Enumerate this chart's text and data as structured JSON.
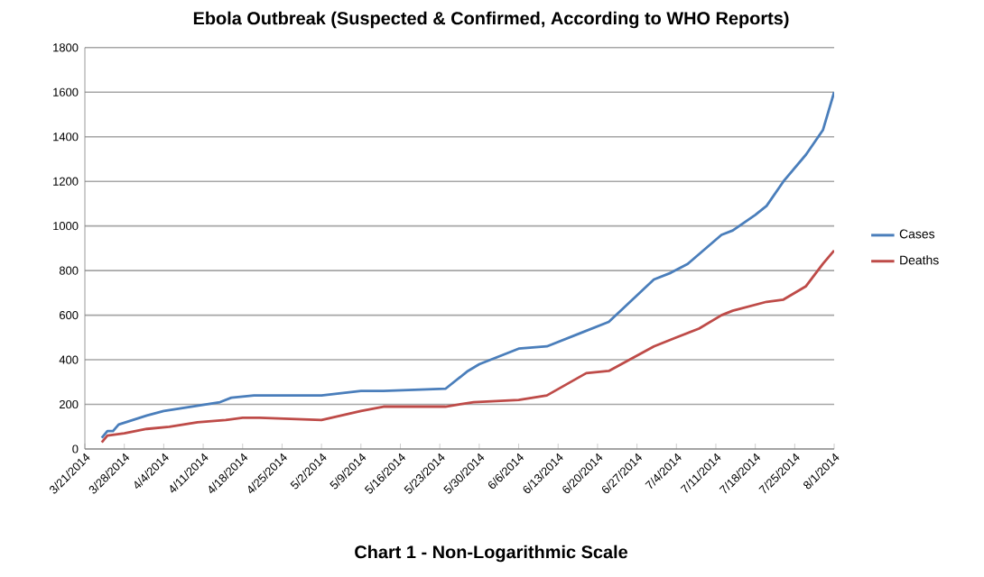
{
  "chart_data": {
    "type": "line",
    "title": "Ebola Outbreak (Suspected & Confirmed, According to WHO Reports)",
    "annotations": [
      "Chart 1 - Non-Logarithmic Scale"
    ],
    "xlim": [
      "2014-03-21",
      "2014-08-01"
    ],
    "xticks": [
      {
        "value": "2014-03-21",
        "label": "3/21/2014"
      },
      {
        "value": "2014-03-28",
        "label": "3/28/2014"
      },
      {
        "value": "2014-04-04",
        "label": "4/4/2014"
      },
      {
        "value": "2014-04-11",
        "label": "4/11/2014"
      },
      {
        "value": "2014-04-18",
        "label": "4/18/2014"
      },
      {
        "value": "2014-04-25",
        "label": "4/25/2014"
      },
      {
        "value": "2014-05-02",
        "label": "5/2/2014"
      },
      {
        "value": "2014-05-09",
        "label": "5/9/2014"
      },
      {
        "value": "2014-05-16",
        "label": "5/16/2014"
      },
      {
        "value": "2014-05-23",
        "label": "5/23/2014"
      },
      {
        "value": "2014-05-30",
        "label": "5/30/2014"
      },
      {
        "value": "2014-06-06",
        "label": "6/6/2014"
      },
      {
        "value": "2014-06-13",
        "label": "6/13/2014"
      },
      {
        "value": "2014-06-20",
        "label": "6/20/2014"
      },
      {
        "value": "2014-06-27",
        "label": "6/27/2014"
      },
      {
        "value": "2014-07-04",
        "label": "7/4/2014"
      },
      {
        "value": "2014-07-11",
        "label": "7/11/2014"
      },
      {
        "value": "2014-07-18",
        "label": "7/18/2014"
      },
      {
        "value": "2014-07-25",
        "label": "7/25/2014"
      },
      {
        "value": "2014-08-01",
        "label": "8/1/2014"
      }
    ],
    "ylim": [
      0,
      1800
    ],
    "yticks": [
      0,
      200,
      400,
      600,
      800,
      1000,
      1200,
      1400,
      1600,
      1800
    ],
    "grid": "y",
    "legend": "right",
    "series": [
      {
        "name": "Cases",
        "color": "#4a7ebb",
        "x": [
          "2014-03-24",
          "2014-03-25",
          "2014-03-26",
          "2014-03-27",
          "2014-04-01",
          "2014-04-04",
          "2014-04-09",
          "2014-04-14",
          "2014-04-16",
          "2014-04-20",
          "2014-05-02",
          "2014-05-09",
          "2014-05-13",
          "2014-05-24",
          "2014-05-28",
          "2014-05-30",
          "2014-06-06",
          "2014-06-11",
          "2014-06-17",
          "2014-06-22",
          "2014-06-30",
          "2014-07-03",
          "2014-07-06",
          "2014-07-12",
          "2014-07-14",
          "2014-07-18",
          "2014-07-20",
          "2014-07-23",
          "2014-07-27",
          "2014-07-30",
          "2014-08-01"
        ],
        "values": [
          50,
          80,
          80,
          110,
          150,
          170,
          190,
          210,
          230,
          240,
          240,
          260,
          260,
          270,
          350,
          380,
          450,
          460,
          520,
          570,
          760,
          790,
          830,
          960,
          980,
          1050,
          1090,
          1200,
          1320,
          1430,
          1600
        ]
      },
      {
        "name": "Deaths",
        "color": "#be4b48",
        "x": [
          "2014-03-24",
          "2014-03-25",
          "2014-03-28",
          "2014-04-01",
          "2014-04-05",
          "2014-04-10",
          "2014-04-15",
          "2014-04-18",
          "2014-04-21",
          "2014-05-02",
          "2014-05-09",
          "2014-05-13",
          "2014-05-24",
          "2014-05-29",
          "2014-06-06",
          "2014-06-11",
          "2014-06-18",
          "2014-06-22",
          "2014-06-30",
          "2014-07-04",
          "2014-07-08",
          "2014-07-12",
          "2014-07-14",
          "2014-07-20",
          "2014-07-23",
          "2014-07-27",
          "2014-07-30",
          "2014-08-01"
        ],
        "values": [
          30,
          60,
          70,
          90,
          100,
          120,
          130,
          140,
          140,
          130,
          170,
          190,
          190,
          210,
          220,
          240,
          340,
          350,
          460,
          500,
          540,
          600,
          620,
          660,
          670,
          730,
          830,
          890
        ]
      }
    ]
  }
}
